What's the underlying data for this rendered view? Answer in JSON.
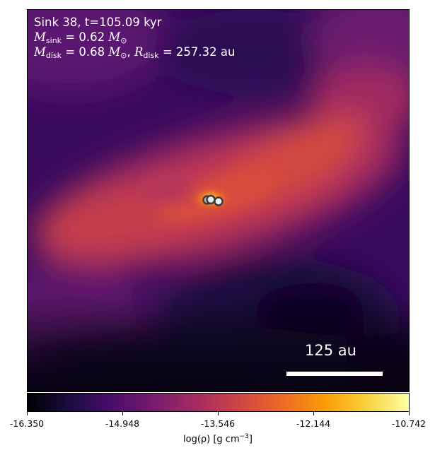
{
  "overlay": {
    "sink_label": "Sink 38, t=105.09 kyr",
    "m_sink_symbol": "M",
    "m_sink_sub": "sink",
    "m_sink_value": "= 0.62",
    "sun_unit": "M",
    "sun_sub": "⊙",
    "m_disk_symbol": "M",
    "m_disk_sub": "disk",
    "m_disk_value": "= 0.68",
    "r_disk_symbol": "R",
    "r_disk_sub": "disk",
    "r_disk_value": "= 257.32 au"
  },
  "scalebar": {
    "label": "125 au"
  },
  "colorbar": {
    "ticks": [
      "-16.350",
      "-14.948",
      "-13.546",
      "-12.144",
      "-10.742"
    ],
    "label_main": "log(ρ) [g cm",
    "label_exp": "−3",
    "label_end": "]"
  },
  "sinks": [
    {
      "name": "sink-a"
    },
    {
      "name": "sink-b"
    },
    {
      "name": "sink-c"
    }
  ]
}
